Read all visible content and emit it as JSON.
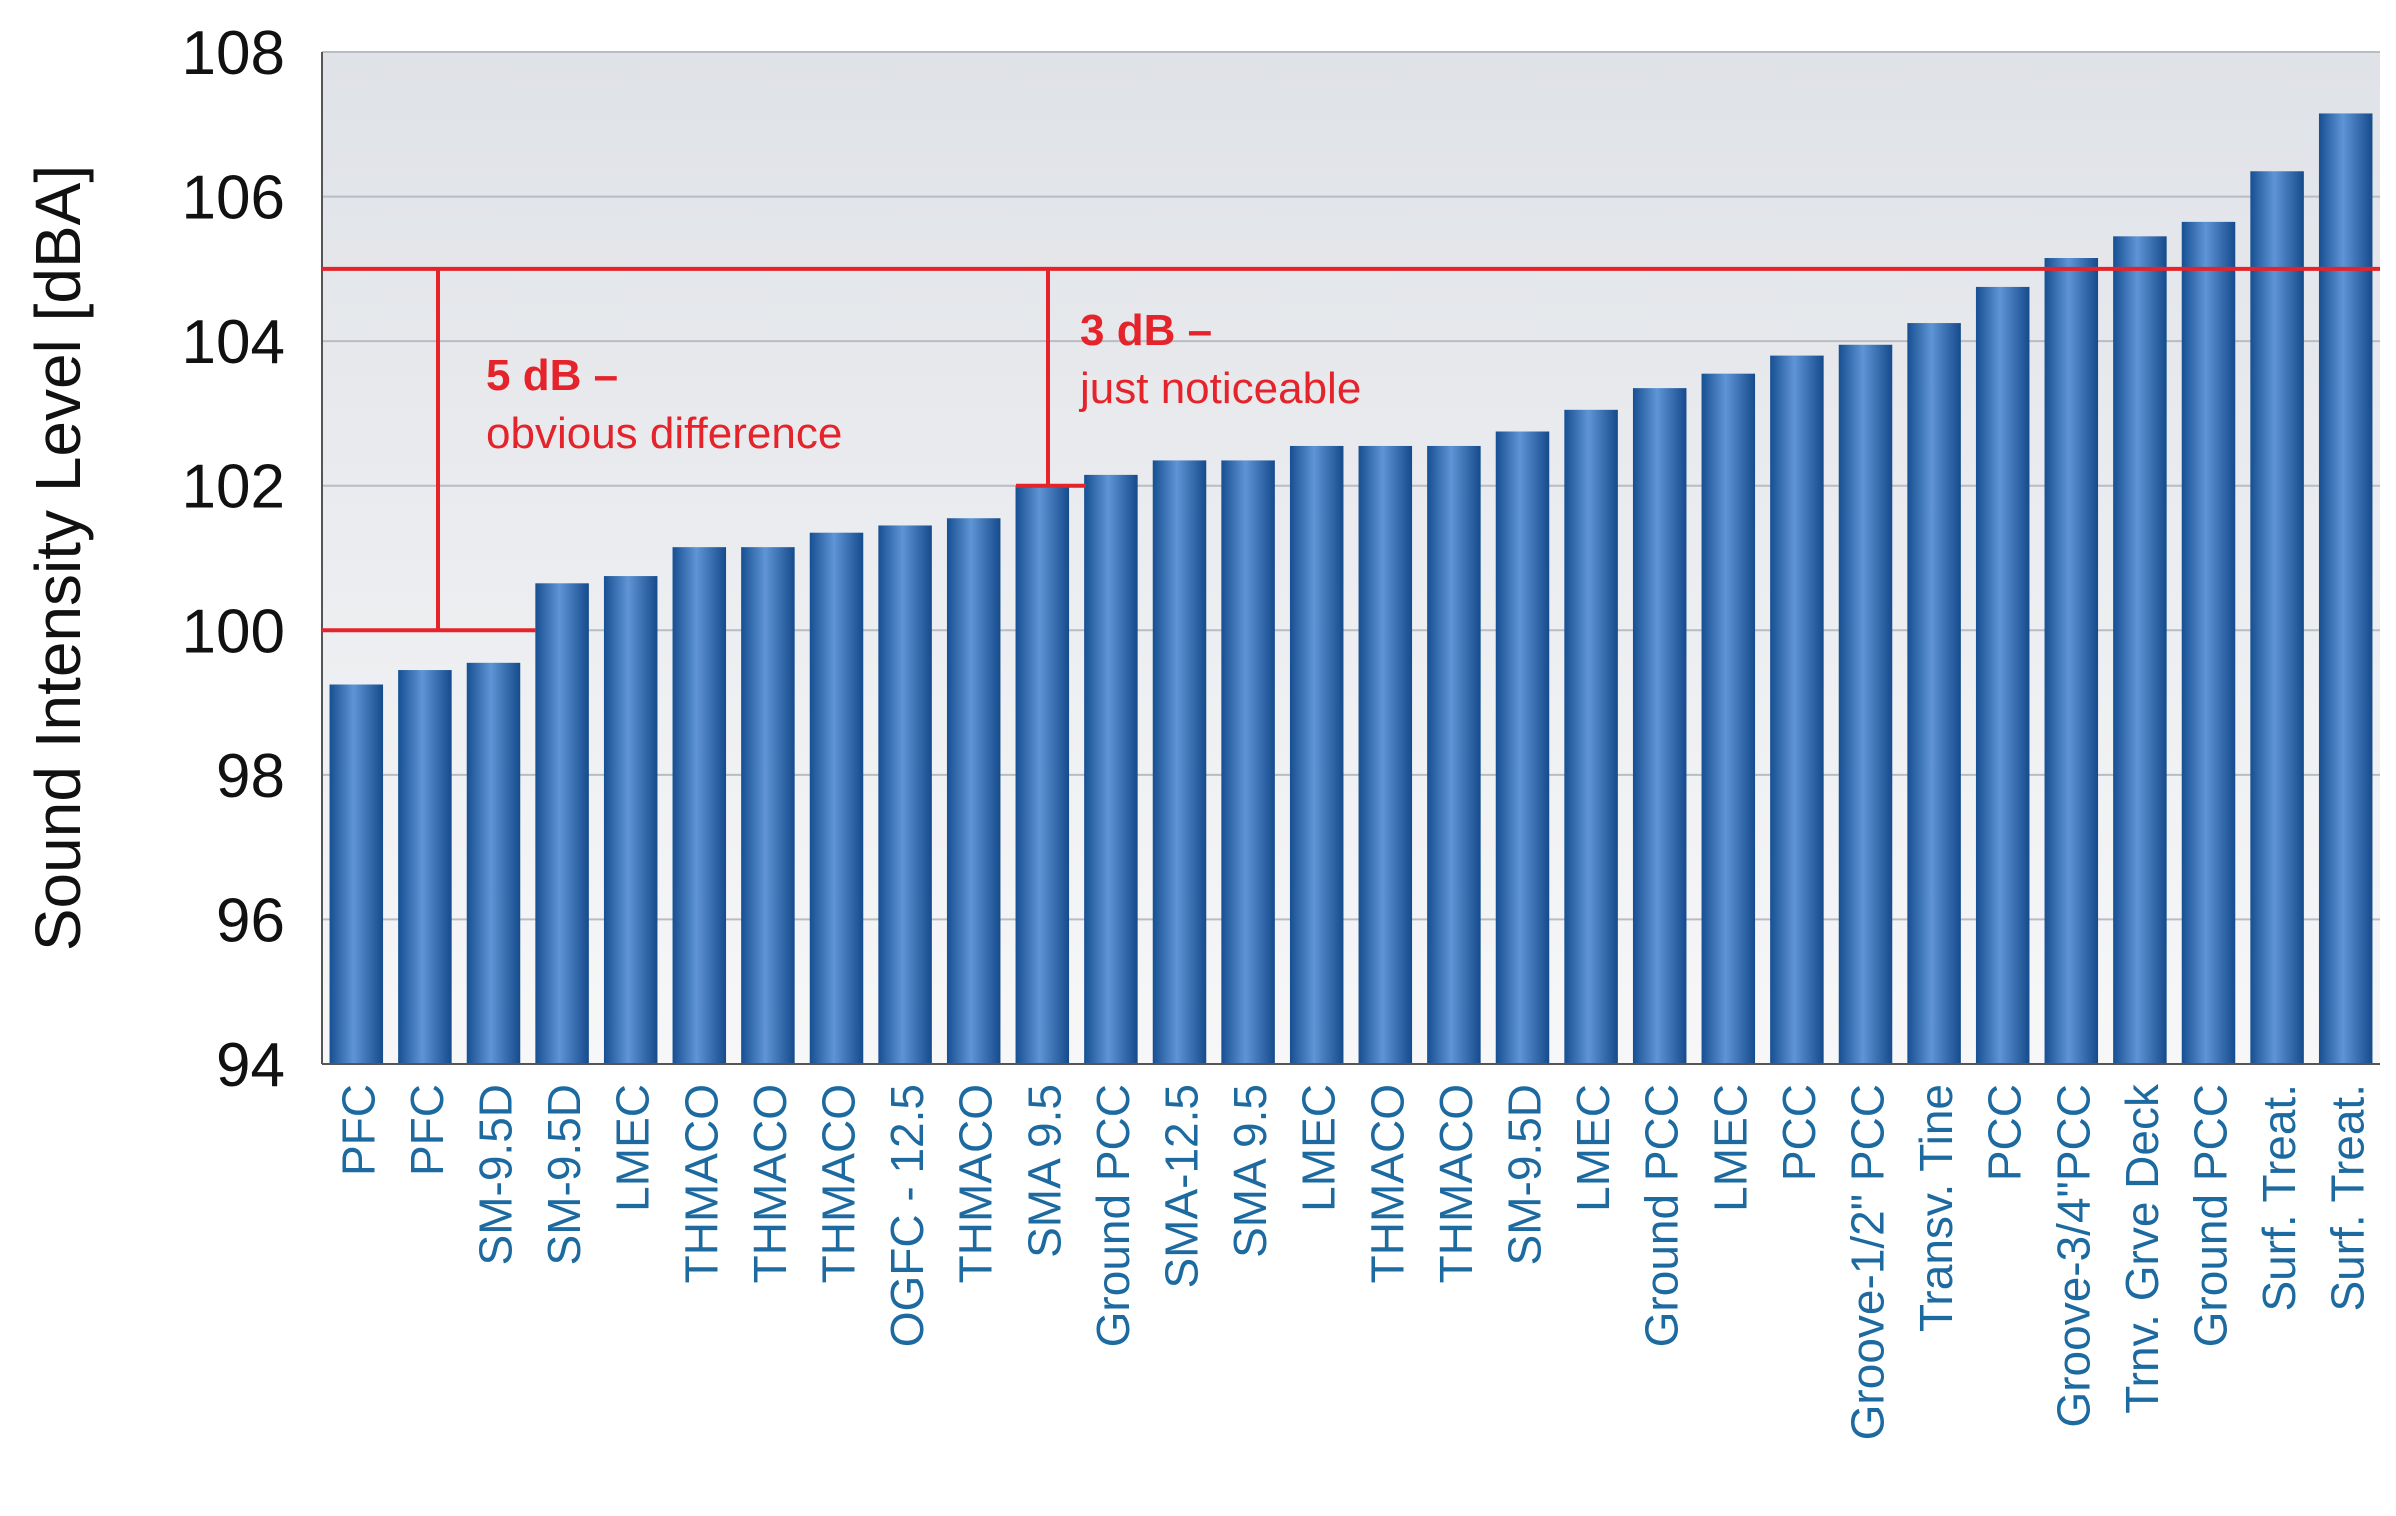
{
  "chart_data": {
    "type": "bar",
    "title": "",
    "xlabel": "",
    "ylabel": "Sound Intensity Level [dBA]",
    "ylim": [
      94,
      108
    ],
    "yticks": [
      94,
      96,
      98,
      100,
      102,
      104,
      106,
      108
    ],
    "grid": true,
    "categories": [
      "PFC",
      "PFC",
      "SM-9.5D",
      "SM-9.5D",
      "LMEC",
      "THMACO",
      "THMACO",
      "THMACO",
      "OGFC - 12.5",
      "THMACO",
      "SMA 9.5",
      "Ground PCC",
      "SMA-12.5",
      "SMA 9.5",
      "LMEC",
      "THMACO",
      "THMACO",
      "SM-9.5D",
      "LMEC",
      "Ground PCC",
      "LMEC",
      "PCC",
      "Groove-1/2\" PCC",
      "Transv. Tine",
      "PCC",
      "Groove-3/4\"PCC",
      "Trnv. Grve Deck",
      "Ground PCC",
      "Surf. Treat.",
      "Surf. Treat."
    ],
    "values": [
      99.25,
      99.45,
      99.55,
      100.65,
      100.75,
      101.15,
      101.15,
      101.35,
      101.45,
      101.55,
      102.0,
      102.15,
      102.35,
      102.35,
      102.55,
      102.55,
      102.55,
      102.75,
      103.05,
      103.35,
      103.55,
      103.8,
      103.95,
      104.25,
      104.75,
      105.15,
      105.45,
      105.65,
      106.35,
      107.15
    ],
    "annotations": [
      {
        "label_bold": "5 dB –",
        "label": "obvious difference",
        "from": 100,
        "to": 105
      },
      {
        "label_bold": "3 dB –",
        "label": "just noticeable",
        "from": 102,
        "to": 105
      }
    ],
    "reference_lines": [
      105,
      100,
      102
    ]
  },
  "colors": {
    "bar": "#1f5fa8",
    "bar_highlight": "#5f95d6",
    "annotation": "#e4232a",
    "plot_bg": "#e8eaee",
    "grid": "#b8bcc3",
    "tick_label": "#1c6aa0"
  }
}
